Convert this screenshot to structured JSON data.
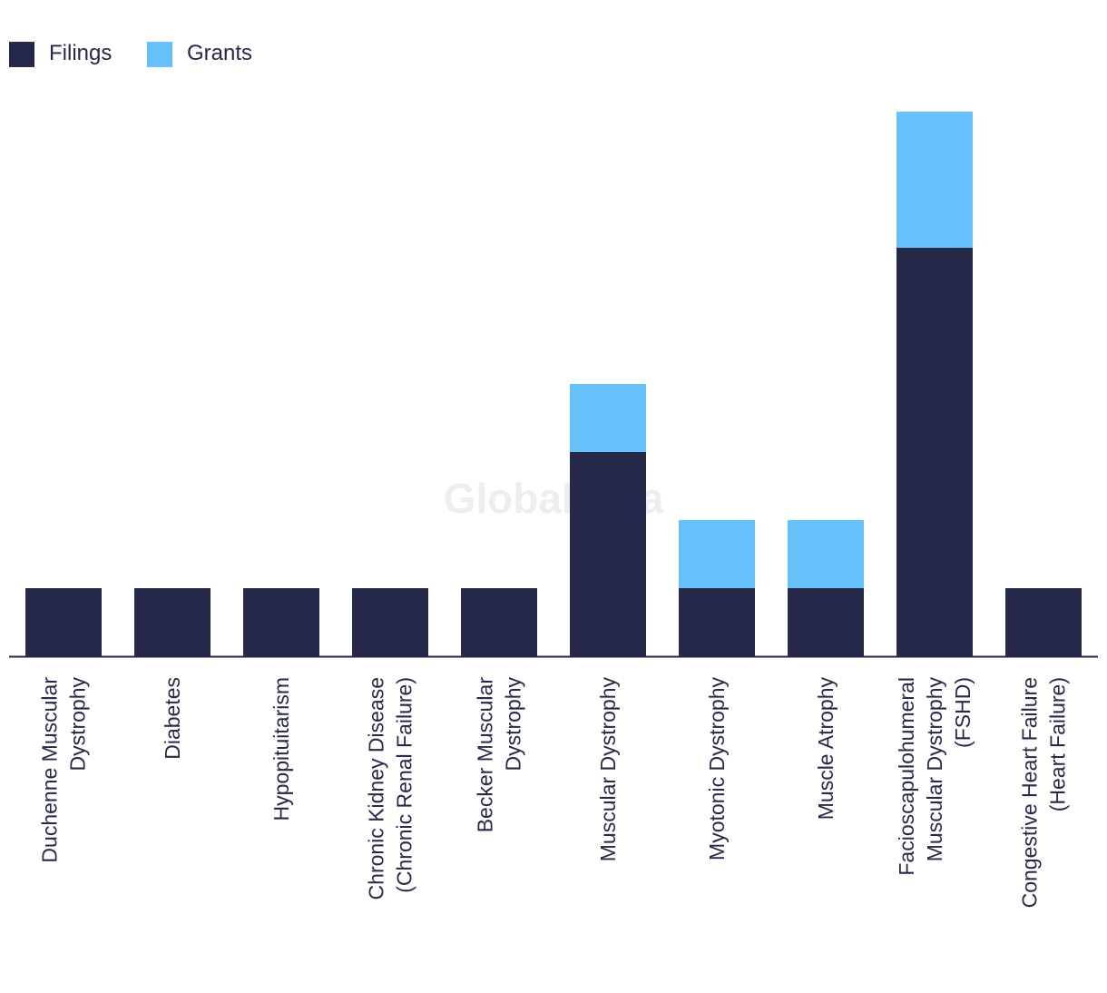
{
  "watermark": "GlobalData",
  "colors": {
    "filings": "#262849",
    "grants": "#64c1f9",
    "axis": "#262849",
    "text": "#262849"
  },
  "chart_data": {
    "type": "bar",
    "stacked": true,
    "categories": [
      [
        "Duchenne Muscular",
        "Dystrophy"
      ],
      [
        "Diabetes"
      ],
      [
        "Hypopituitarism"
      ],
      [
        "Chronic Kidney Disease",
        "(Chronic Renal Failure)"
      ],
      [
        "Becker Muscular",
        "Dystrophy"
      ],
      [
        "Muscular Dystrophy"
      ],
      [
        "Myotonic Dystrophy"
      ],
      [
        "Muscle Atrophy"
      ],
      [
        "Facioscapulohumeral",
        "Muscular Dystrophy",
        "(FSHD)"
      ],
      [
        "Congestive Heart Failure",
        "(Heart Failure)"
      ]
    ],
    "series": [
      {
        "name": "Filings",
        "color": "#262849",
        "values": [
          1,
          1,
          1,
          1,
          1,
          3,
          1,
          1,
          6,
          1
        ]
      },
      {
        "name": "Grants",
        "color": "#64c1f9",
        "values": [
          0,
          0,
          0,
          0,
          0,
          1,
          1,
          1,
          2,
          0
        ]
      }
    ],
    "ylim": [
      0,
      8
    ],
    "legend_position": "top-left",
    "grid": false,
    "title": "",
    "xlabel": "",
    "ylabel": ""
  }
}
